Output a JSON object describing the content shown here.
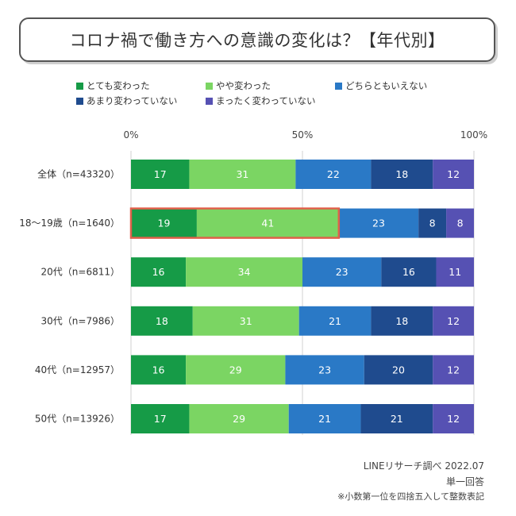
{
  "title": "コロナ禍で働き方への意識の変化は？【年代別】",
  "chart_data": {
    "type": "bar",
    "orientation": "horizontal-stacked-100",
    "categories": [
      "全体（n=43320）",
      "18～19歳（n=1640）",
      "20代（n=6811）",
      "30代（n=7986）",
      "40代（n=12957）",
      "50代（n=13926）"
    ],
    "series": [
      {
        "name": "とても変わった",
        "color": "#169b47",
        "values": [
          17,
          19,
          16,
          18,
          16,
          17
        ]
      },
      {
        "name": "やや変わった",
        "color": "#7bd563",
        "values": [
          31,
          41,
          34,
          31,
          29,
          29
        ]
      },
      {
        "name": "どちらともいえない",
        "color": "#2a79c6",
        "values": [
          22,
          23,
          23,
          21,
          23,
          21
        ]
      },
      {
        "name": "あまり変わっていない",
        "color": "#1f4b8e",
        "values": [
          18,
          8,
          16,
          18,
          20,
          21
        ]
      },
      {
        "name": "まったく変わっていない",
        "color": "#5651b3",
        "values": [
          12,
          8,
          11,
          12,
          12,
          12
        ]
      }
    ],
    "x_ticks": [
      "0%",
      "50%",
      "100%"
    ],
    "xlim": [
      0,
      100
    ],
    "highlight": {
      "category_index": 1,
      "series": [
        "とても変わった",
        "やや変わった"
      ],
      "color": "#e0604a"
    },
    "legend_position": "top"
  },
  "footer": {
    "source": "LINEリサーチ調べ 2022.07",
    "answer_type": "単一回答",
    "note": "※小数第一位を四捨五入して整数表記"
  }
}
